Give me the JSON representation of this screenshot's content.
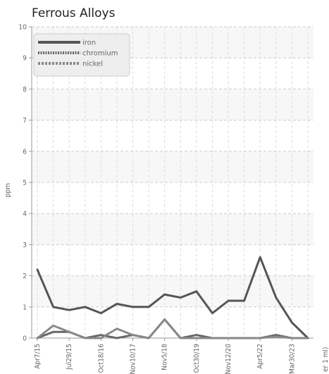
{
  "chart_data": {
    "type": "line",
    "title": "Ferrous Alloys",
    "ylabel": "ppm",
    "xlabel_partial": "er 1 ml)",
    "ylim": [
      0,
      10
    ],
    "yticks": [
      0,
      1,
      2,
      3,
      4,
      5,
      6,
      7,
      8,
      9,
      10
    ],
    "grid": true,
    "legend_position": "top-left",
    "x": [
      "Apr7/15",
      "",
      "Jul29/15",
      "",
      "Oct18/16",
      "",
      "Nov10/17",
      "",
      "Nov5/18",
      "",
      "Oct30/19",
      "",
      "Nov12/20",
      "",
      "Apr5/22",
      "",
      "Mar30/23",
      ""
    ],
    "x_tick_labels": [
      "Apr7/15",
      "Jul29/15",
      "Oct18/16",
      "Nov10/17",
      "Nov5/18",
      "Oct30/19",
      "Nov12/20",
      "Apr5/22",
      "Mar30/23"
    ],
    "series": [
      {
        "name": "iron",
        "color": "#555555",
        "style": "solid",
        "values": [
          2.2,
          1.0,
          0.9,
          1.0,
          0.8,
          1.1,
          1.0,
          1.0,
          1.4,
          1.3,
          1.5,
          0.8,
          1.2,
          1.2,
          2.6,
          1.3,
          0.5,
          0.0
        ]
      },
      {
        "name": "chromium",
        "color": "#666666",
        "style": "dotted",
        "values": [
          0.0,
          0.2,
          0.2,
          0.0,
          0.1,
          0.0,
          0.1,
          0.0,
          0.6,
          0.0,
          0.1,
          0.0,
          0.0,
          0.0,
          0.0,
          0.1,
          0.0,
          0.0
        ]
      },
      {
        "name": "nickel",
        "color": "#888888",
        "style": "dashed",
        "values": [
          0.0,
          0.4,
          0.2,
          0.0,
          0.0,
          0.3,
          0.1,
          0.0,
          0.6,
          0.0,
          0.0,
          0.0,
          0.0,
          0.0,
          0.0,
          0.05,
          0.0,
          0.0
        ]
      }
    ]
  }
}
